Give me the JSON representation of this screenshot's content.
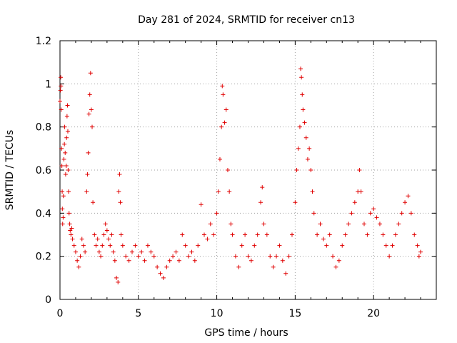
{
  "chart_data": {
    "type": "scatter",
    "title": "Day 281 of 2024, SRMTID for receiver cn13",
    "xlabel": "GPS time / hours",
    "ylabel": "SRMTID / TECUs",
    "xlim": [
      0,
      24
    ],
    "ylim": [
      0,
      1.2
    ],
    "xticks": [
      0,
      5,
      10,
      15,
      20
    ],
    "yticks": [
      0,
      0.2,
      0.4,
      0.6,
      0.8,
      1,
      1.2
    ],
    "xtick_labels": [
      "0",
      "5",
      "10",
      "15",
      "20"
    ],
    "ytick_labels": [
      "0",
      "0.2",
      "0.4",
      "0.6",
      "0.8",
      "1",
      "1.2"
    ],
    "grid": true,
    "marker": "plus",
    "color": "#e00000",
    "series": [
      {
        "name": "SRMTID",
        "points": [
          [
            0.0,
            0.92
          ],
          [
            0.03,
            0.97
          ],
          [
            0.05,
            1.03
          ],
          [
            0.06,
            0.99
          ],
          [
            0.08,
            0.88
          ],
          [
            0.1,
            0.7
          ],
          [
            0.12,
            0.62
          ],
          [
            0.14,
            0.5
          ],
          [
            0.15,
            0.42
          ],
          [
            0.17,
            0.35
          ],
          [
            0.2,
            0.38
          ],
          [
            0.22,
            0.48
          ],
          [
            0.25,
            0.65
          ],
          [
            0.28,
            0.72
          ],
          [
            0.3,
            0.8
          ],
          [
            0.33,
            0.68
          ],
          [
            0.36,
            0.58
          ],
          [
            0.4,
            0.62
          ],
          [
            0.42,
            0.75
          ],
          [
            0.45,
            0.85
          ],
          [
            0.48,
            0.9
          ],
          [
            0.5,
            0.78
          ],
          [
            0.52,
            0.6
          ],
          [
            0.55,
            0.5
          ],
          [
            0.58,
            0.4
          ],
          [
            0.62,
            0.35
          ],
          [
            0.65,
            0.32
          ],
          [
            0.7,
            0.3
          ],
          [
            0.75,
            0.33
          ],
          [
            0.8,
            0.28
          ],
          [
            0.9,
            0.25
          ],
          [
            1.0,
            0.22
          ],
          [
            1.1,
            0.18
          ],
          [
            1.2,
            0.15
          ],
          [
            1.3,
            0.2
          ],
          [
            1.4,
            0.28
          ],
          [
            1.5,
            0.25
          ],
          [
            1.6,
            0.22
          ],
          [
            1.7,
            0.5
          ],
          [
            1.75,
            0.58
          ],
          [
            1.8,
            0.68
          ],
          [
            1.85,
            0.86
          ],
          [
            1.9,
            0.95
          ],
          [
            1.95,
            1.05
          ],
          [
            2.0,
            0.88
          ],
          [
            2.05,
            0.8
          ],
          [
            2.1,
            0.45
          ],
          [
            2.2,
            0.3
          ],
          [
            2.3,
            0.25
          ],
          [
            2.4,
            0.28
          ],
          [
            2.5,
            0.22
          ],
          [
            2.6,
            0.2
          ],
          [
            2.7,
            0.25
          ],
          [
            2.8,
            0.3
          ],
          [
            2.9,
            0.35
          ],
          [
            3.0,
            0.32
          ],
          [
            3.1,
            0.28
          ],
          [
            3.2,
            0.25
          ],
          [
            3.3,
            0.3
          ],
          [
            3.4,
            0.22
          ],
          [
            3.5,
            0.18
          ],
          [
            3.6,
            0.1
          ],
          [
            3.7,
            0.08
          ],
          [
            3.75,
            0.5
          ],
          [
            3.8,
            0.58
          ],
          [
            3.85,
            0.45
          ],
          [
            3.9,
            0.3
          ],
          [
            4.0,
            0.25
          ],
          [
            4.2,
            0.2
          ],
          [
            4.4,
            0.18
          ],
          [
            4.6,
            0.22
          ],
          [
            4.8,
            0.25
          ],
          [
            5.0,
            0.2
          ],
          [
            5.2,
            0.22
          ],
          [
            5.4,
            0.18
          ],
          [
            5.6,
            0.25
          ],
          [
            5.8,
            0.22
          ],
          [
            6.0,
            0.2
          ],
          [
            6.2,
            0.15
          ],
          [
            6.4,
            0.12
          ],
          [
            6.6,
            0.1
          ],
          [
            6.8,
            0.15
          ],
          [
            7.0,
            0.18
          ],
          [
            7.2,
            0.2
          ],
          [
            7.4,
            0.22
          ],
          [
            7.6,
            0.18
          ],
          [
            7.8,
            0.3
          ],
          [
            8.0,
            0.25
          ],
          [
            8.2,
            0.2
          ],
          [
            8.4,
            0.22
          ],
          [
            8.6,
            0.18
          ],
          [
            8.8,
            0.25
          ],
          [
            9.0,
            0.44
          ],
          [
            9.2,
            0.3
          ],
          [
            9.4,
            0.28
          ],
          [
            9.6,
            0.35
          ],
          [
            9.8,
            0.3
          ],
          [
            10.0,
            0.4
          ],
          [
            10.1,
            0.5
          ],
          [
            10.2,
            0.65
          ],
          [
            10.3,
            0.8
          ],
          [
            10.35,
            0.99
          ],
          [
            10.4,
            0.95
          ],
          [
            10.5,
            0.82
          ],
          [
            10.6,
            0.88
          ],
          [
            10.7,
            0.6
          ],
          [
            10.8,
            0.5
          ],
          [
            10.9,
            0.35
          ],
          [
            11.0,
            0.3
          ],
          [
            11.2,
            0.2
          ],
          [
            11.4,
            0.15
          ],
          [
            11.6,
            0.25
          ],
          [
            11.8,
            0.3
          ],
          [
            12.0,
            0.2
          ],
          [
            12.2,
            0.18
          ],
          [
            12.4,
            0.25
          ],
          [
            12.6,
            0.3
          ],
          [
            12.8,
            0.45
          ],
          [
            12.9,
            0.52
          ],
          [
            13.0,
            0.35
          ],
          [
            13.2,
            0.3
          ],
          [
            13.4,
            0.2
          ],
          [
            13.6,
            0.15
          ],
          [
            13.8,
            0.2
          ],
          [
            14.0,
            0.25
          ],
          [
            14.2,
            0.18
          ],
          [
            14.4,
            0.12
          ],
          [
            14.6,
            0.2
          ],
          [
            14.8,
            0.3
          ],
          [
            15.0,
            0.45
          ],
          [
            15.1,
            0.6
          ],
          [
            15.2,
            0.7
          ],
          [
            15.3,
            0.8
          ],
          [
            15.35,
            1.07
          ],
          [
            15.4,
            1.03
          ],
          [
            15.45,
            0.95
          ],
          [
            15.5,
            0.88
          ],
          [
            15.6,
            0.82
          ],
          [
            15.7,
            0.75
          ],
          [
            15.8,
            0.65
          ],
          [
            15.9,
            0.7
          ],
          [
            16.0,
            0.6
          ],
          [
            16.1,
            0.5
          ],
          [
            16.2,
            0.4
          ],
          [
            16.4,
            0.3
          ],
          [
            16.6,
            0.35
          ],
          [
            16.8,
            0.28
          ],
          [
            17.0,
            0.25
          ],
          [
            17.2,
            0.3
          ],
          [
            17.4,
            0.2
          ],
          [
            17.6,
            0.15
          ],
          [
            17.8,
            0.18
          ],
          [
            18.0,
            0.25
          ],
          [
            18.2,
            0.3
          ],
          [
            18.4,
            0.35
          ],
          [
            18.6,
            0.4
          ],
          [
            18.8,
            0.45
          ],
          [
            19.0,
            0.5
          ],
          [
            19.1,
            0.6
          ],
          [
            19.2,
            0.5
          ],
          [
            19.4,
            0.35
          ],
          [
            19.6,
            0.3
          ],
          [
            19.8,
            0.4
          ],
          [
            20.0,
            0.42
          ],
          [
            20.2,
            0.38
          ],
          [
            20.4,
            0.35
          ],
          [
            20.6,
            0.3
          ],
          [
            20.8,
            0.25
          ],
          [
            21.0,
            0.2
          ],
          [
            21.2,
            0.25
          ],
          [
            21.4,
            0.3
          ],
          [
            21.6,
            0.35
          ],
          [
            21.8,
            0.4
          ],
          [
            22.0,
            0.45
          ],
          [
            22.2,
            0.48
          ],
          [
            22.4,
            0.4
          ],
          [
            22.6,
            0.3
          ],
          [
            22.8,
            0.25
          ],
          [
            22.9,
            0.2
          ],
          [
            23.0,
            0.22
          ]
        ]
      }
    ]
  }
}
